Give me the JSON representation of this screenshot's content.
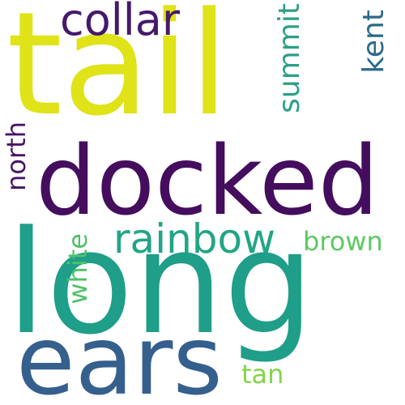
{
  "words": [
    {
      "text": "tail",
      "color": "#dfe318"
    },
    {
      "text": "long",
      "color": "#1f9e89"
    },
    {
      "text": "docked",
      "color": "#440d5e"
    },
    {
      "text": "ears",
      "color": "#355f8d"
    },
    {
      "text": "rainbow",
      "color": "#21a585"
    },
    {
      "text": "collar",
      "color": "#46196b"
    },
    {
      "text": "summit",
      "color": "#2d9f86"
    },
    {
      "text": "kent",
      "color": "#2b6a8b"
    },
    {
      "text": "north",
      "color": "#481668"
    },
    {
      "text": "white",
      "color": "#4fc16a"
    },
    {
      "text": "brown",
      "color": "#5dc863"
    },
    {
      "text": "tan",
      "color": "#85d34a"
    }
  ]
}
